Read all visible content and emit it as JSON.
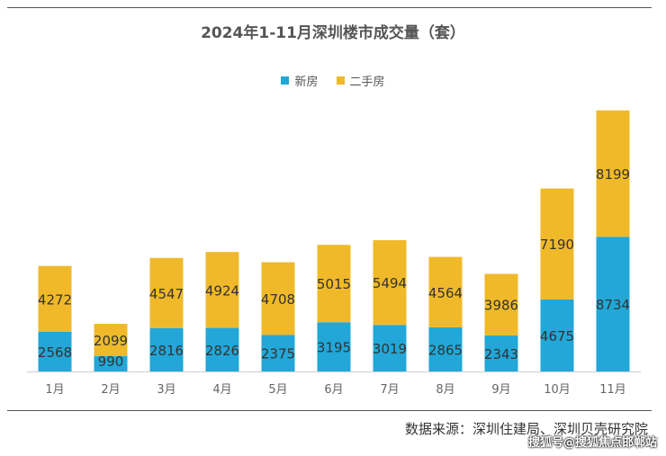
{
  "chart_data": {
    "type": "bar",
    "stacked": true,
    "title": "2024年1-11月深圳楼市成交量（套）",
    "categories": [
      "1月",
      "2月",
      "3月",
      "4月",
      "5月",
      "6月",
      "7月",
      "8月",
      "9月",
      "10月",
      "11月"
    ],
    "series": [
      {
        "name": "新房",
        "color": "#22a7d8",
        "values": [
          2568,
          990,
          2816,
          2826,
          2375,
          3195,
          3019,
          2865,
          2343,
          4675,
          8734
        ]
      },
      {
        "name": "二手房",
        "color": "#f0b92a",
        "values": [
          4272,
          2099,
          4547,
          4924,
          4708,
          5015,
          5494,
          4564,
          3986,
          7190,
          8199
        ]
      }
    ],
    "ylim": [
      0,
      17500
    ],
    "legend_position": "top-center",
    "grid": false
  },
  "source_text": "数据来源：深圳住建局、深圳贝壳研究院",
  "watermark_text": "搜狐号@搜狐焦点邯郸站"
}
